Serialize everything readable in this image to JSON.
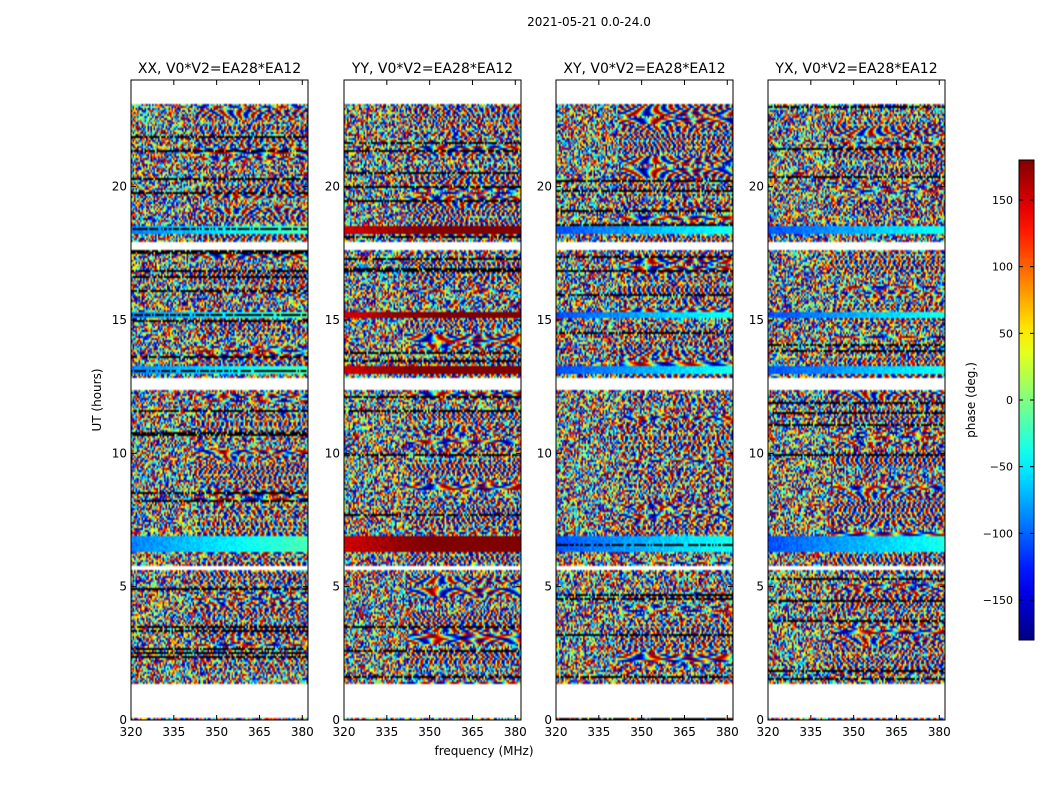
{
  "figure_title": "2021-05-21 0.0-24.0",
  "chart_data": {
    "type": "heatmap",
    "title": "2021-05-21 0.0-24.0",
    "xlabel": "frequency (MHz)",
    "ylabel": "UT (hours)",
    "xlim": [
      320,
      382
    ],
    "ylim": [
      0,
      24
    ],
    "x_ticks": [
      320,
      335,
      350,
      365,
      380
    ],
    "y_ticks": [
      0,
      5,
      10,
      15,
      20
    ],
    "panels": [
      {
        "title": "XX, V0*V2=EA28*EA12",
        "polarization": "XX",
        "seed": 11
      },
      {
        "title": "YY, V0*V2=EA28*EA12",
        "polarization": "YY",
        "seed": 23
      },
      {
        "title": "XY, V0*V2=EA28*EA12",
        "polarization": "XY",
        "seed": 37
      },
      {
        "title": "YX, V0*V2=EA28*EA12",
        "polarization": "YX",
        "seed": 51
      }
    ],
    "no_data_ut_ranges": [
      [
        0.1,
        1.35
      ],
      [
        23.1,
        24.0
      ],
      [
        17.65,
        17.9
      ],
      [
        12.4,
        12.85
      ],
      [
        5.6,
        5.75
      ]
    ],
    "colorbar": {
      "label": "phase (deg.)",
      "range": [
        -180,
        180
      ],
      "ticks": [
        -150,
        -100,
        -50,
        0,
        50,
        100,
        150
      ],
      "tick_labels": [
        "−150",
        "−100",
        "−50",
        "0",
        "50",
        "100",
        "150"
      ],
      "colormap": "jet"
    }
  }
}
